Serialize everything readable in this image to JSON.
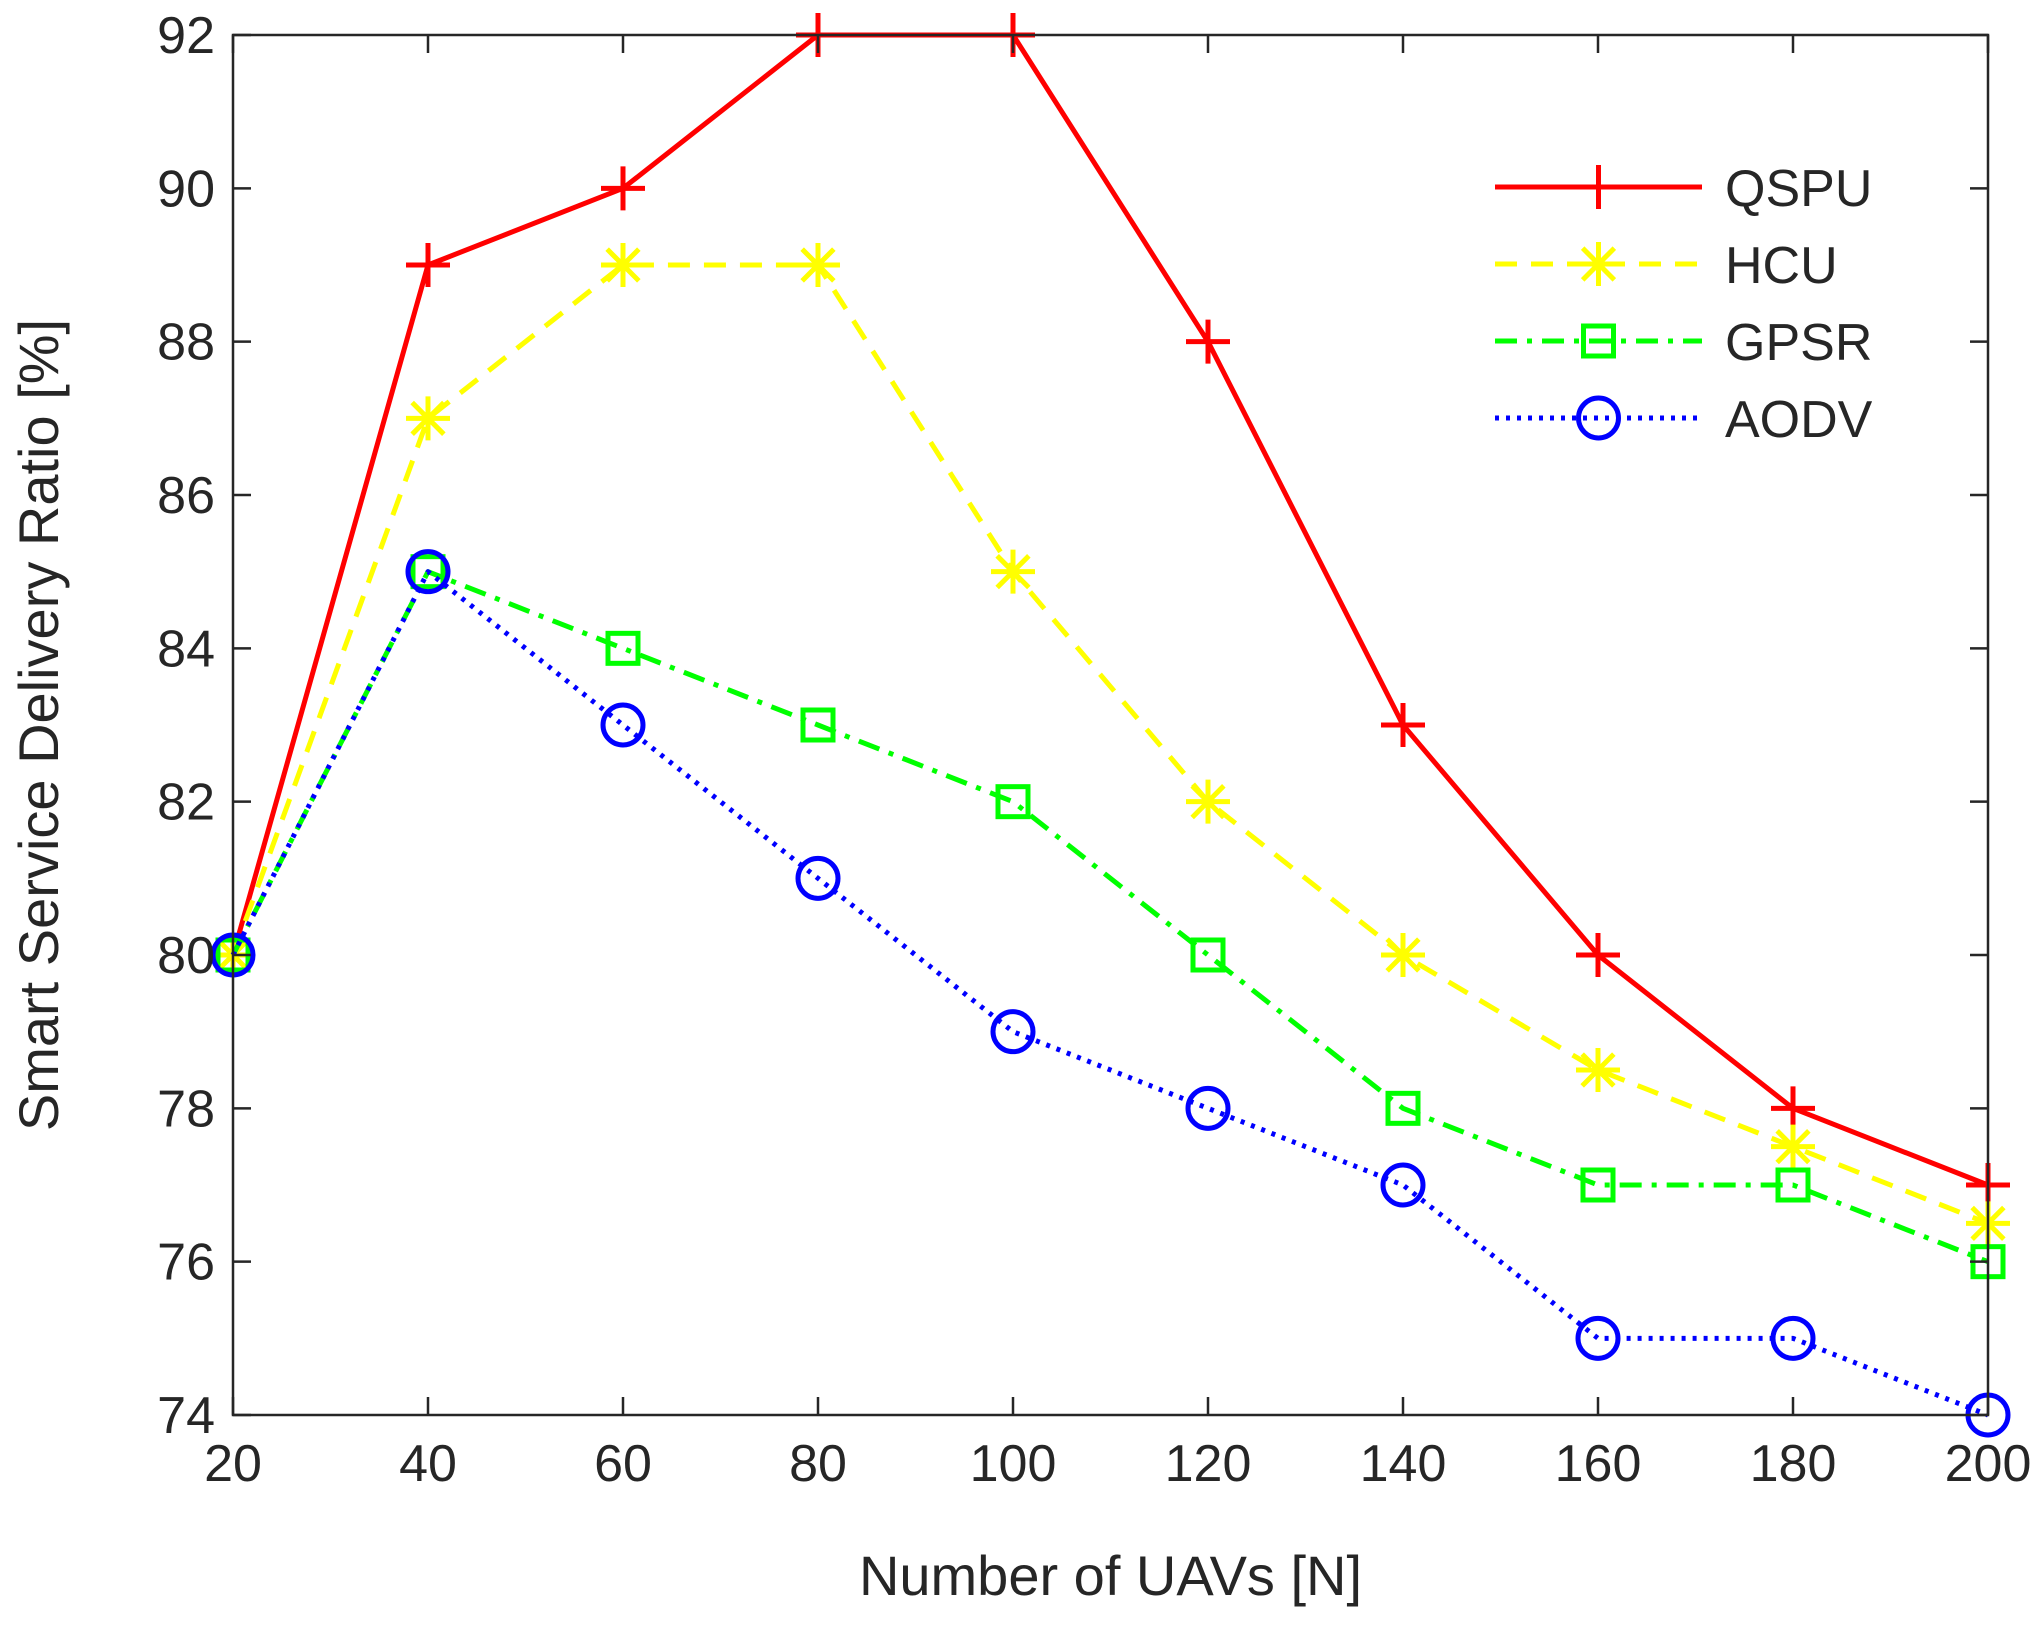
{
  "chart_data": {
    "type": "line",
    "title": "",
    "xlabel": "Number of UAVs [N]",
    "ylabel": "Smart Service Delivery Ratio [%]",
    "xlim": [
      20,
      200
    ],
    "ylim": [
      74,
      92
    ],
    "xticks": [
      20,
      40,
      60,
      80,
      100,
      120,
      140,
      160,
      180,
      200
    ],
    "yticks": [
      74,
      76,
      78,
      80,
      82,
      84,
      86,
      88,
      90,
      92
    ],
    "grid": false,
    "legend_position": "top-right",
    "x": [
      20,
      40,
      60,
      80,
      100,
      120,
      140,
      160,
      180,
      200
    ],
    "series": [
      {
        "name": "QSPU",
        "color": "#ff0000",
        "line": "solid",
        "marker": "plus",
        "values": [
          80,
          89,
          90,
          92,
          92,
          88,
          83,
          80,
          78,
          77
        ]
      },
      {
        "name": "HCU",
        "color": "#ffff00",
        "line": "dashed",
        "marker": "asterisk",
        "values": [
          80,
          87,
          89,
          89,
          85,
          82,
          80,
          78.5,
          77.5,
          76.5
        ]
      },
      {
        "name": "GPSR",
        "color": "#00ff00",
        "line": "dashdot",
        "marker": "square",
        "values": [
          80,
          85,
          84,
          83,
          82,
          80,
          78,
          77,
          77,
          76
        ]
      },
      {
        "name": "AODV",
        "color": "#0000ff",
        "line": "dotted",
        "marker": "circle",
        "values": [
          80,
          85,
          83,
          81,
          79,
          78,
          77,
          75,
          75,
          74
        ]
      }
    ]
  }
}
